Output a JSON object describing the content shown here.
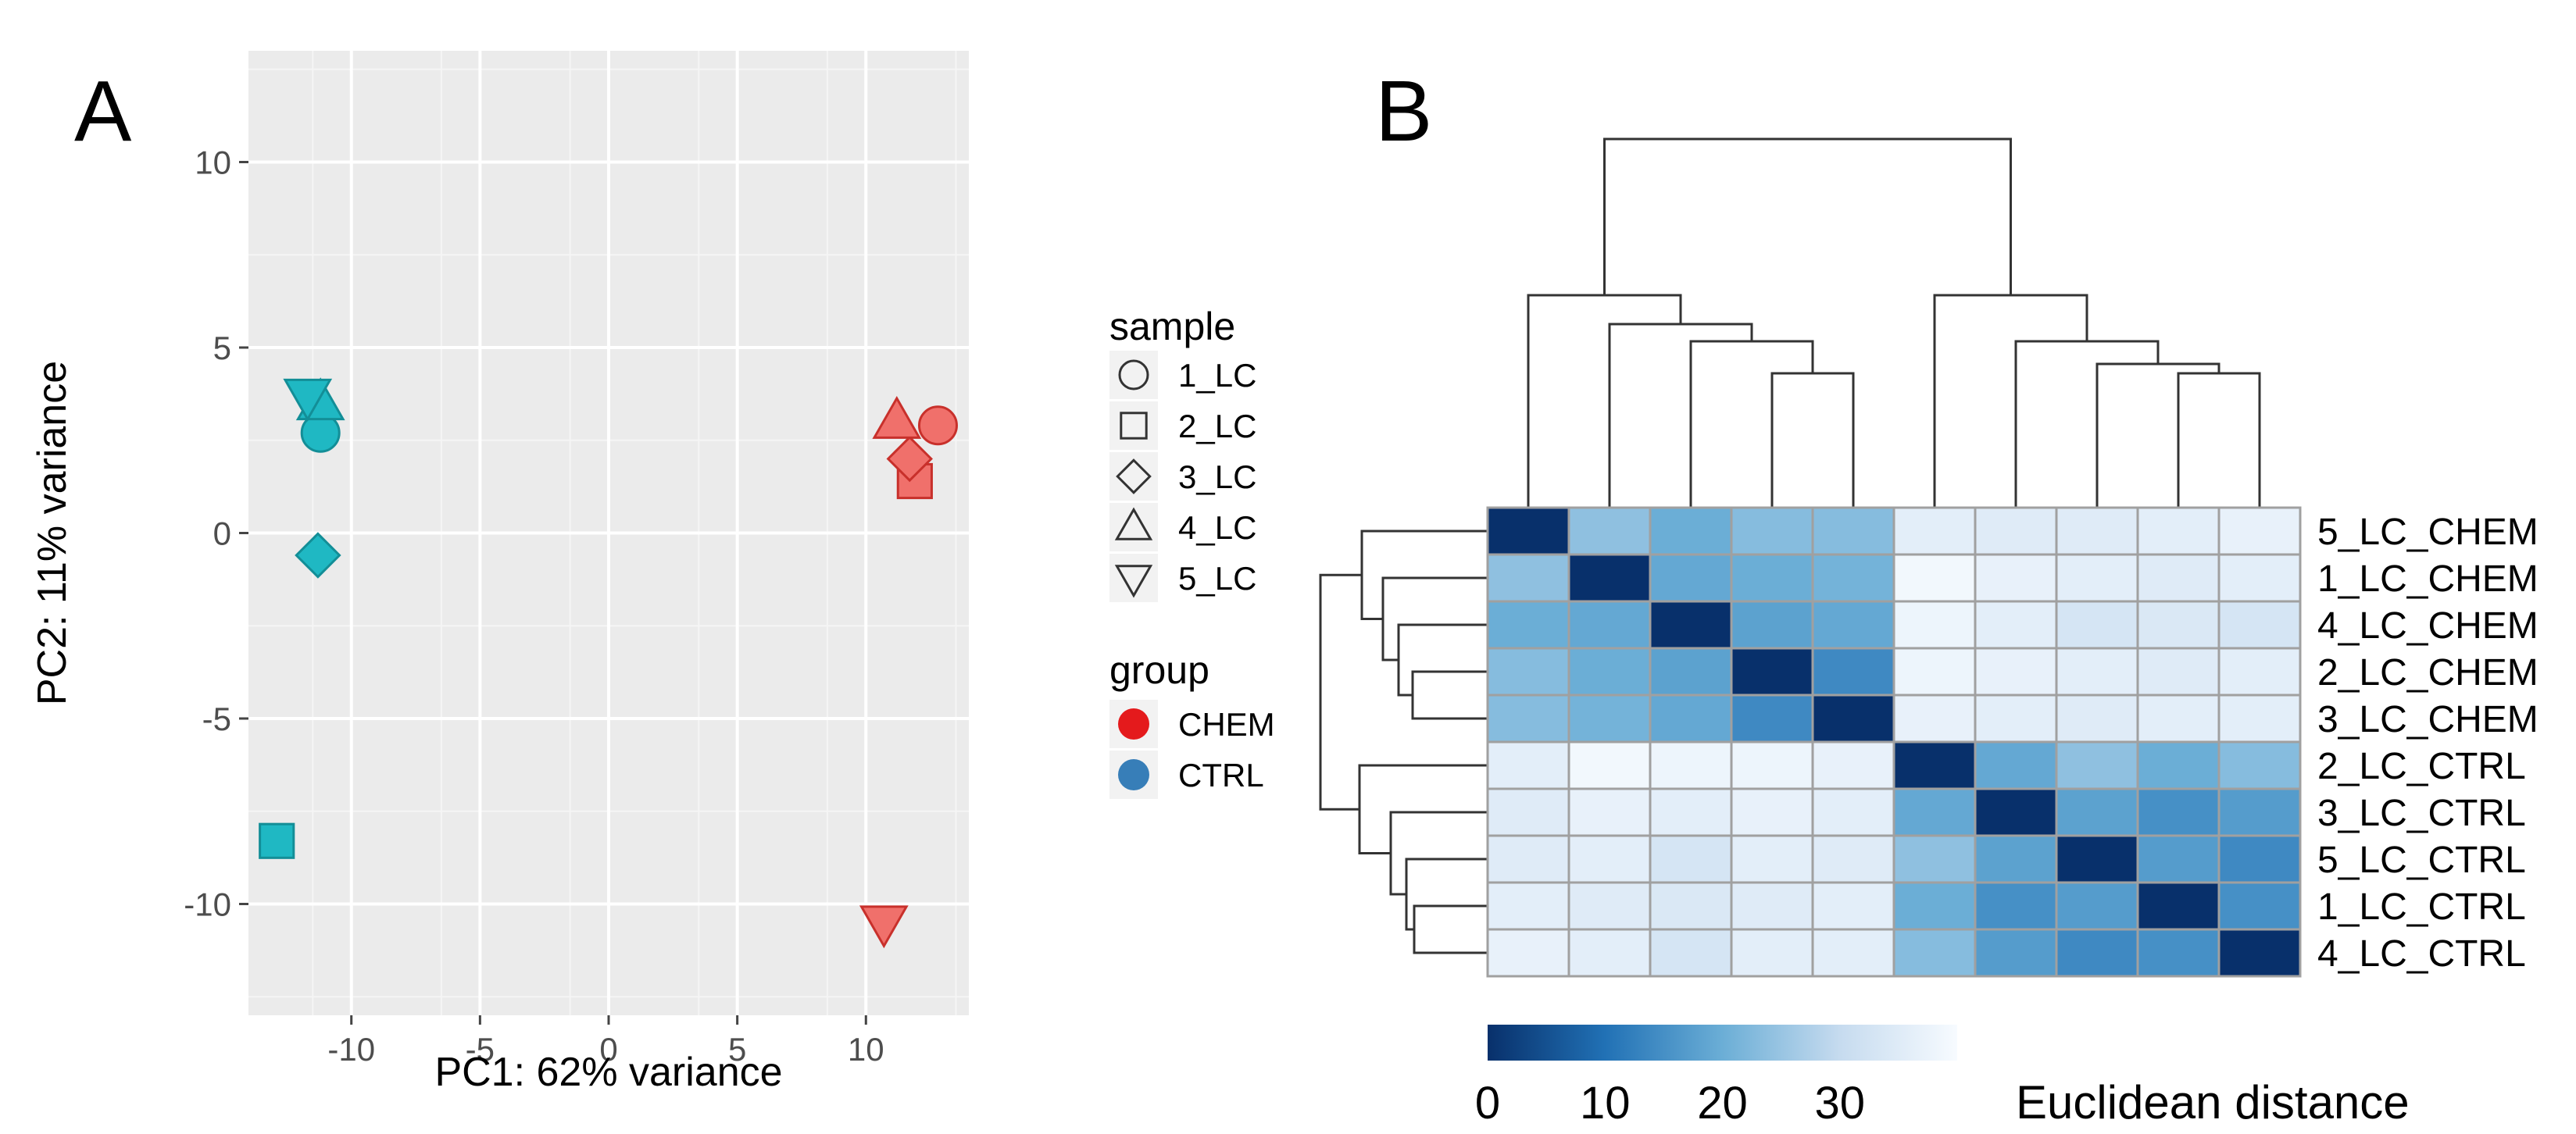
{
  "panels": {
    "a_label": "A",
    "b_label": "B"
  },
  "chart_data": [
    {
      "type": "scatter",
      "panel": "A",
      "xlabel": "PC1: 62% variance",
      "ylabel": "PC2: 11% variance",
      "xlim": [
        -14,
        14
      ],
      "ylim": [
        -13,
        13
      ],
      "xticks": [
        -10,
        -5,
        0,
        5,
        10
      ],
      "yticks": [
        10,
        5,
        0,
        -5,
        -10
      ],
      "grid": true,
      "legend_placement": "right",
      "legend_sample": {
        "title": "sample",
        "items": [
          {
            "label": "1_LC",
            "shape": "circle"
          },
          {
            "label": "2_LC",
            "shape": "square"
          },
          {
            "label": "3_LC",
            "shape": "diamond"
          },
          {
            "label": "4_LC",
            "shape": "triangle-up"
          },
          {
            "label": "5_LC",
            "shape": "triangle-down"
          }
        ]
      },
      "legend_group": {
        "title": "group",
        "items": [
          {
            "label": "CHEM",
            "color": "#e41a1c"
          },
          {
            "label": "CTRL",
            "color": "#377eb8"
          }
        ]
      },
      "group_colors": {
        "CHEM": "#f0706b",
        "CTRL": "#1fb8c3"
      },
      "group_edge_colors": {
        "CHEM": "#c8302b",
        "CTRL": "#138e97"
      },
      "points": [
        {
          "sample": "1_LC",
          "group": "CHEM",
          "x": 12.8,
          "y": 2.9
        },
        {
          "sample": "2_LC",
          "group": "CHEM",
          "x": 11.9,
          "y": 1.4
        },
        {
          "sample": "3_LC",
          "group": "CHEM",
          "x": 11.7,
          "y": 2.0
        },
        {
          "sample": "4_LC",
          "group": "CHEM",
          "x": 11.2,
          "y": 3.0
        },
        {
          "sample": "5_LC",
          "group": "CHEM",
          "x": 10.7,
          "y": -10.5
        },
        {
          "sample": "1_LC",
          "group": "CTRL",
          "x": -11.2,
          "y": 2.7
        },
        {
          "sample": "2_LC",
          "group": "CTRL",
          "x": -12.9,
          "y": -8.3
        },
        {
          "sample": "3_LC",
          "group": "CTRL",
          "x": -11.3,
          "y": -0.6
        },
        {
          "sample": "4_LC",
          "group": "CTRL",
          "x": -11.2,
          "y": 3.5
        },
        {
          "sample": "5_LC",
          "group": "CTRL",
          "x": -11.7,
          "y": 3.7
        }
      ]
    },
    {
      "type": "heatmap",
      "panel": "B",
      "title": "",
      "columns": [
        "5_LC_CHEM",
        "1_LC_CHEM",
        "4_LC_CHEM",
        "2_LC_CHEM",
        "3_LC_CHEM",
        "2_LC_CTRL",
        "3_LC_CTRL",
        "5_LC_CTRL",
        "1_LC_CTRL",
        "4_LC_CTRL"
      ],
      "rows": [
        "5_LC_CHEM",
        "1_LC_CHEM",
        "4_LC_CHEM",
        "2_LC_CHEM",
        "3_LC_CHEM",
        "2_LC_CTRL",
        "3_LC_CTRL",
        "5_LC_CTRL",
        "1_LC_CTRL",
        "4_LC_CTRL"
      ],
      "values": [
        [
          0,
          24,
          20,
          23,
          23,
          36,
          35,
          35,
          36,
          37
        ],
        [
          24,
          0,
          19,
          20,
          21,
          39,
          37,
          36,
          35,
          36
        ],
        [
          20,
          19,
          0,
          18,
          19,
          38,
          36,
          33,
          34,
          33
        ],
        [
          23,
          20,
          18,
          0,
          14,
          38,
          37,
          36,
          35,
          36
        ],
        [
          23,
          21,
          19,
          14,
          0,
          37,
          36,
          35,
          36,
          36
        ],
        [
          36,
          39,
          38,
          38,
          37,
          0,
          19,
          24,
          20,
          23
        ],
        [
          35,
          37,
          36,
          37,
          36,
          19,
          0,
          18,
          15,
          17
        ],
        [
          35,
          36,
          33,
          36,
          35,
          24,
          18,
          0,
          17,
          14
        ],
        [
          36,
          35,
          34,
          35,
          36,
          20,
          15,
          17,
          0,
          15
        ],
        [
          37,
          36,
          33,
          36,
          36,
          23,
          17,
          14,
          15,
          0
        ]
      ],
      "colorbar": {
        "label": "Euclidean distance",
        "ticks": [
          0,
          10,
          20,
          30
        ],
        "range": [
          0,
          40
        ],
        "colors": [
          "#08306b",
          "#2171b5",
          "#6baed6",
          "#c6dbef",
          "#f7fbff"
        ]
      },
      "dendrogram_order": [
        "5_LC_CHEM",
        "1_LC_CHEM",
        "4_LC_CHEM",
        "2_LC_CHEM",
        "3_LC_CHEM",
        "2_LC_CTRL",
        "3_LC_CTRL",
        "5_LC_CTRL",
        "1_LC_CTRL",
        "4_LC_CTRL"
      ]
    }
  ]
}
